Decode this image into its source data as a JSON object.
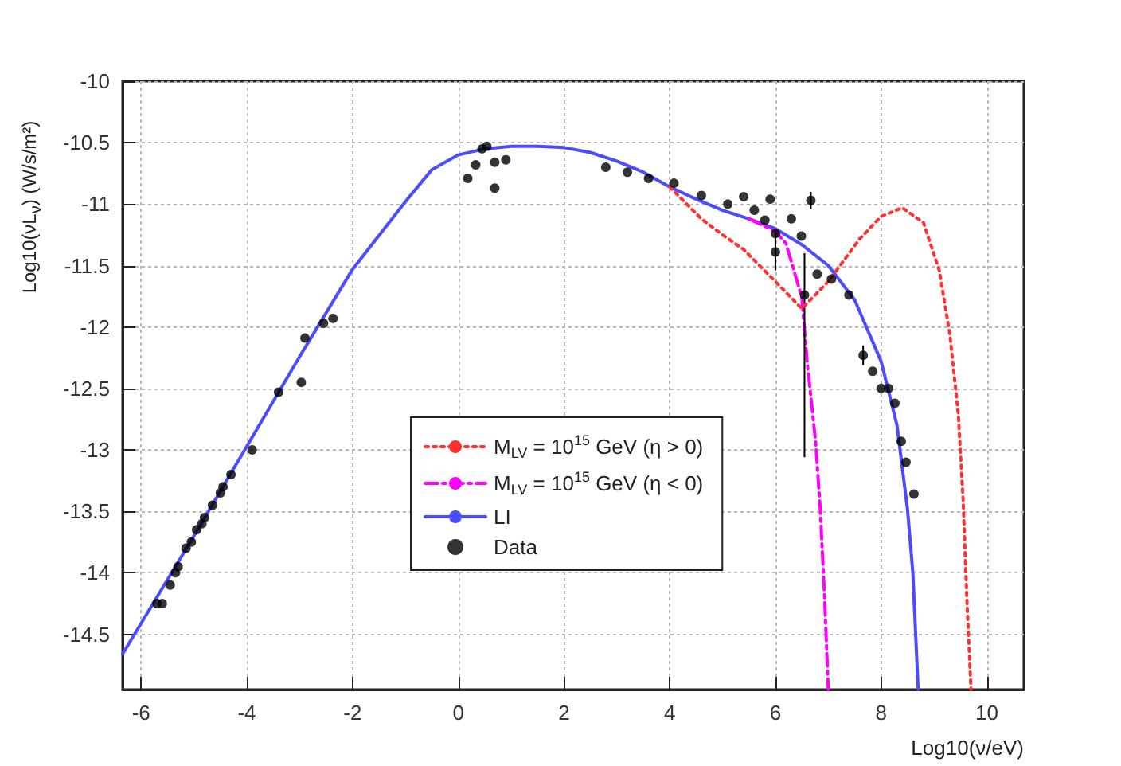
{
  "chart_data": {
    "type": "line",
    "xlabel": "Log10(ν/eV)",
    "ylabel": "Log10(νL$_{ν}$) (W/s/m²)",
    "xlim": [
      -6.35,
      10.7
    ],
    "ylim": [
      -14.95,
      -10
    ],
    "xticks": [
      -6,
      -4,
      -2,
      0,
      2,
      4,
      6,
      8,
      10
    ],
    "yticks": [
      -14.5,
      -14,
      -13.5,
      -13,
      -12.5,
      -12,
      -11.5,
      -11,
      -10.5,
      -10
    ],
    "grid": true,
    "legend": "bottom",
    "series": [
      {
        "name": "M$_{LV}$ = 10$^{15}$ GeV (η > 0)",
        "color": "#ff3030",
        "line_style": "dotted",
        "marker": "none",
        "x": [
          4,
          4.6,
          5,
          5.4,
          6,
          6.5,
          7,
          7.6,
          8,
          8.4,
          8.8,
          9.1,
          9.3,
          9.46,
          9.55,
          9.62,
          9.7
        ],
        "values": [
          -10.86,
          -11.12,
          -11.25,
          -11.37,
          -11.63,
          -11.85,
          -11.63,
          -11.28,
          -11.1,
          -11.03,
          -11.15,
          -11.54,
          -12.06,
          -12.71,
          -13.4,
          -14.2,
          -14.95
        ]
      },
      {
        "name": "M$_{LV}$ = 10$^{15}$ GeV (η < 0)",
        "color": "#ff00ff",
        "line_style": "dashed",
        "marker": "none",
        "x": [
          5.5,
          6,
          6.2,
          6.5,
          6.6,
          6.76,
          6.85,
          6.93,
          7.0
        ],
        "values": [
          -11.12,
          -11.22,
          -11.32,
          -11.76,
          -12.28,
          -12.93,
          -13.49,
          -14.2,
          -14.95
        ]
      },
      {
        "name": "LI",
        "color": "#4b4bff",
        "line_style": "solid",
        "marker": "none",
        "x": [
          -6.35,
          -5,
          -4,
          -3,
          -2,
          -1,
          -0.5,
          0,
          0.5,
          1,
          1.5,
          2,
          2.5,
          3,
          3.5,
          4,
          4.5,
          5,
          5.5,
          6,
          6.5,
          7,
          7.5,
          8,
          8.3,
          8.5,
          8.6,
          8.7
        ],
        "values": [
          -14.66,
          -13.7,
          -12.97,
          -12.24,
          -11.53,
          -10.98,
          -10.72,
          -10.6,
          -10.55,
          -10.53,
          -10.53,
          -10.54,
          -10.58,
          -10.65,
          -10.74,
          -10.86,
          -10.96,
          -11.05,
          -11.12,
          -11.2,
          -11.33,
          -11.5,
          -11.78,
          -12.28,
          -12.8,
          -13.49,
          -14.0,
          -14.95
        ]
      },
      {
        "name": "Data",
        "type": "scatter",
        "color": "#000000",
        "marker": "circle",
        "x": [
          -5.7,
          -5.6,
          -5.45,
          -5.35,
          -5.3,
          -5.15,
          -5.05,
          -4.95,
          -4.85,
          -4.8,
          -4.65,
          -4.5,
          -4.45,
          -4.3,
          -3.9,
          -3.4,
          -2.97,
          -2.9,
          -2.55,
          -2.37,
          0.18,
          0.33,
          0.45,
          0.54,
          0.69,
          0.69,
          0.9,
          2.79,
          3.2,
          3.6,
          4.08,
          4.6,
          5.1,
          5.4,
          5.6,
          5.9,
          5.8,
          6.0,
          6.3,
          6.49,
          6.67,
          6.0,
          6.55,
          6.79,
          7.06,
          7.39,
          7.66,
          7.84,
          8.0,
          8.14,
          8.26,
          8.38,
          8.47,
          8.62
        ],
        "values": [
          -14.25,
          -14.25,
          -14.1,
          -14.0,
          -13.95,
          -13.8,
          -13.75,
          -13.65,
          -13.6,
          -13.55,
          -13.45,
          -13.35,
          -13.3,
          -13.2,
          -13.0,
          -12.53,
          -12.45,
          -12.09,
          -11.97,
          -11.93,
          -10.79,
          -10.68,
          -10.55,
          -10.53,
          -10.87,
          -10.66,
          -10.64,
          -10.7,
          -10.74,
          -10.79,
          -10.83,
          -10.93,
          -11.0,
          -10.94,
          -11.05,
          -10.96,
          -11.13,
          -11.24,
          -11.12,
          -11.26,
          -10.97,
          -11.39,
          -11.74,
          -11.57,
          -11.61,
          -11.74,
          -12.23,
          -12.36,
          -12.5,
          -12.5,
          -12.62,
          -12.93,
          -13.1,
          -13.36
        ],
        "errors": [
          null,
          null,
          null,
          null,
          null,
          null,
          null,
          null,
          null,
          null,
          null,
          null,
          null,
          null,
          null,
          null,
          null,
          null,
          null,
          null,
          null,
          null,
          null,
          null,
          null,
          null,
          null,
          null,
          null,
          null,
          null,
          null,
          null,
          null,
          null,
          null,
          null,
          null,
          null,
          null,
          0.07,
          0.15,
          [
            -13.06,
            -11.4
          ],
          null,
          null,
          null,
          0.08,
          null,
          null,
          null,
          null,
          null,
          null,
          null
        ]
      }
    ]
  }
}
